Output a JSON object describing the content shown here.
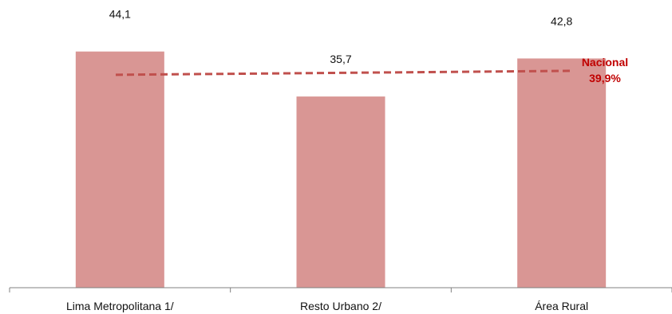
{
  "chart_data": {
    "type": "bar",
    "categories": [
      "Lima Metropolitana 1/",
      "Resto Urbano 2/",
      "Área Rural"
    ],
    "values": [
      44.1,
      35.7,
      42.8
    ],
    "value_labels": [
      "44,1",
      "35,7",
      "42,8"
    ],
    "bar_color": "#d99694",
    "reference_line": {
      "value": 39.9,
      "label": "Nacional",
      "value_label": "39,9%",
      "color": "#c0504d",
      "text_color": "#c00000",
      "style": "dashed"
    },
    "title": "",
    "xlabel": "",
    "ylabel": "",
    "ylim": [
      0,
      50
    ],
    "grid": false,
    "legend": "none"
  }
}
